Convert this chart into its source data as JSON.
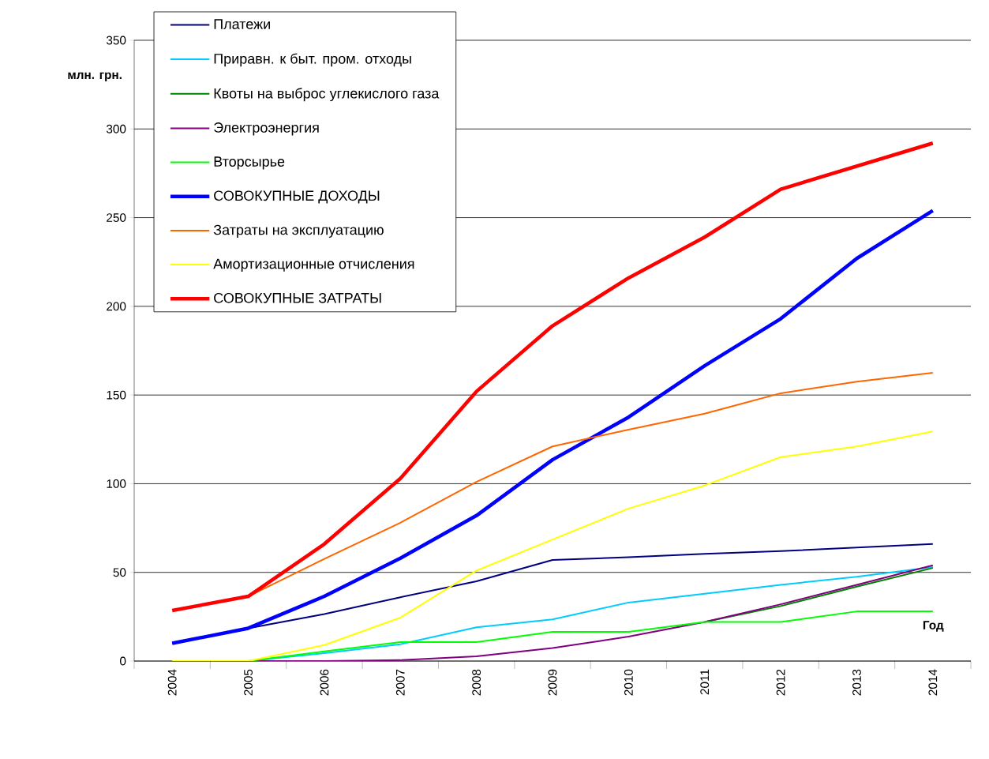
{
  "chart_data": {
    "type": "line",
    "xlabel": "Год",
    "ylabel": "млн. грн.",
    "categories": [
      "2004",
      "2005",
      "2006",
      "2007",
      "2008",
      "2009",
      "2010",
      "2011",
      "2012",
      "2013",
      "2014"
    ],
    "ylim": [
      0,
      350
    ],
    "yticks": [
      0,
      50,
      100,
      150,
      200,
      250,
      300,
      350
    ],
    "grid": "y",
    "legend": "top left",
    "marker": "none",
    "line_style": "solid",
    "series": [
      {
        "name": "Платежи",
        "color": "#000080",
        "values": [
          10,
          18.5,
          26.5,
          36,
          45,
          57,
          58.5,
          60.5,
          62,
          64,
          66
        ]
      },
      {
        "name": "Приравн. к быт. пром. отходы",
        "color": "#00ccff",
        "values": [
          0,
          0,
          4.5,
          9.5,
          19,
          23.5,
          33,
          38,
          43,
          47.5,
          53
        ]
      },
      {
        "name": "Квоты на выброс углекислого газа",
        "color": "#008000",
        "values": [
          null,
          null,
          null,
          null,
          null,
          null,
          null,
          22,
          31,
          42,
          52.5
        ]
      },
      {
        "name": "Электроэнергия",
        "color": "#800080",
        "values": [
          0,
          0,
          0,
          0.5,
          2.7,
          7.3,
          13.8,
          22,
          32,
          43,
          54
        ]
      },
      {
        "name": "Вторсырье",
        "color": "#00ff00",
        "values": [
          0,
          0,
          5.5,
          10.7,
          10.7,
          16.5,
          16.5,
          22,
          22,
          28,
          28
        ]
      },
      {
        "name": "СОВОКУПНЫЕ ДОХОДЫ",
        "color": "#0000ff",
        "values": [
          10,
          18.5,
          36.5,
          58,
          82,
          113.5,
          137.5,
          166.5,
          193,
          227,
          254
        ]
      },
      {
        "name": "Затраты на эксплуатацию",
        "color": "#ff6600",
        "values": [
          null,
          36.5,
          57.6,
          78,
          101,
          121,
          130.5,
          139.5,
          151,
          157.5,
          162.5
        ]
      },
      {
        "name": "Амортизационные отчисления",
        "color": "#ffff00",
        "values": [
          0,
          0,
          9,
          24.5,
          51,
          68.5,
          86,
          99,
          115,
          121,
          129.5
        ]
      },
      {
        "name": "СОВОКУПНЫЕ ЗАТРАТЫ",
        "color": "#ff0000",
        "values": [
          28.5,
          36.5,
          66,
          103,
          152,
          189,
          216,
          239,
          266,
          279,
          292
        ]
      }
    ]
  }
}
